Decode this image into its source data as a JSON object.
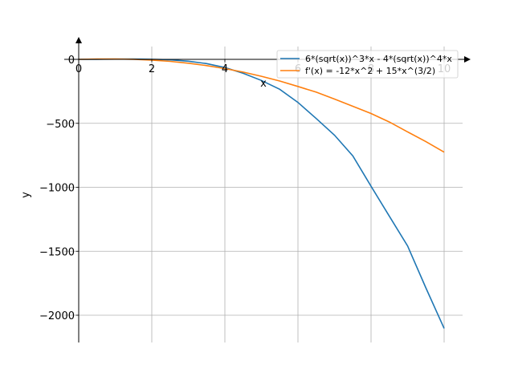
{
  "chart_data": {
    "type": "line",
    "title": "",
    "xlabel": "x",
    "ylabel": "y",
    "xlim": [
      0,
      10.5
    ],
    "ylim": [
      -2200,
      120
    ],
    "grid": true,
    "x_ticks": [
      0,
      2,
      4,
      6,
      8,
      10
    ],
    "y_ticks": [
      0,
      -500,
      -1000,
      -1500,
      -2000
    ],
    "x_tick_labels": [
      "0",
      "2",
      "4",
      "6",
      "8",
      "10"
    ],
    "y_tick_labels": [
      "0",
      "−500",
      "−1000",
      "−1500",
      "−2000"
    ],
    "legend_position": "top-right",
    "series": [
      {
        "name": "6*(sqrt(x))^3*x - 4*(sqrt(x))^4*x",
        "color": "#1f77b4",
        "x": [
          0,
          0.5,
          1,
          1.5,
          2,
          2.5,
          3,
          3.5,
          4,
          4.5,
          5,
          5.5,
          6,
          6.5,
          7,
          7.5,
          8,
          8.5,
          9,
          9.5,
          10
        ],
        "y": [
          0,
          0.62,
          2,
          2.54,
          0.94,
          -3.79,
          -14.5,
          -33.2,
          -64,
          -108.8,
          -164.6,
          -233.6,
          -336.4,
          -462.7,
          -592.5,
          -754.5,
          -991.8,
          -1226.5,
          -1458,
          -1786.8,
          -2102.6
        ]
      },
      {
        "name": "f'(x) = -12*x^2 + 15*x^(3/2)",
        "color": "#ff7f0e",
        "x": [
          0,
          0.5,
          1,
          1.5,
          2,
          2.5,
          3,
          3.5,
          4,
          4.5,
          5,
          5.5,
          6,
          6.5,
          7,
          7.5,
          8,
          8.5,
          9,
          9.5,
          10
        ],
        "y": [
          0,
          2.3,
          3,
          0.56,
          -5.57,
          -15.7,
          -30.1,
          -48.8,
          -72,
          -99.8,
          -132.3,
          -169.5,
          -211.6,
          -256.3,
          -310.2,
          -366.7,
          -423.4,
          -489.5,
          -567,
          -643.5,
          -725.7
        ]
      }
    ]
  }
}
